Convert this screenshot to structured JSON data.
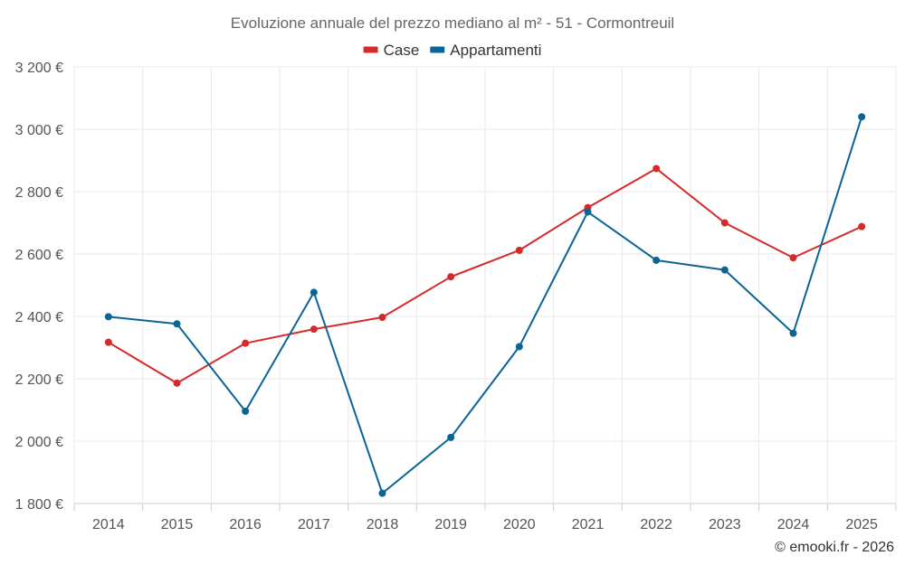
{
  "chart_data": {
    "type": "line",
    "title": "Evoluzione annuale del prezzo mediano al m² - 51 - Cormontreuil",
    "categories": [
      "2014",
      "2015",
      "2016",
      "2017",
      "2018",
      "2019",
      "2020",
      "2021",
      "2022",
      "2023",
      "2024",
      "2025"
    ],
    "series": [
      {
        "name": "Case",
        "color": "#d62a2a",
        "values": [
          2317,
          2186,
          2314,
          2359,
          2397,
          2527,
          2612,
          2749,
          2874,
          2700,
          2588,
          2688
        ]
      },
      {
        "name": "Appartamenti",
        "color": "#0a6495",
        "values": [
          2399,
          2376,
          2096,
          2477,
          1833,
          2012,
          2303,
          2735,
          2580,
          2549,
          2346,
          3040
        ]
      }
    ],
    "ylim": [
      1800,
      3200
    ],
    "yticks": [
      1800,
      2000,
      2200,
      2400,
      2600,
      2800,
      3000,
      3200
    ],
    "ytick_labels": [
      "1 800 €",
      "2 000 €",
      "2 200 €",
      "2 400 €",
      "2 600 €",
      "2 800 €",
      "3 000 €",
      "3 200 €"
    ],
    "xlabel": "",
    "ylabel": "",
    "grid": true,
    "legend_position": "top-center"
  },
  "credit": "© emooki.fr - 2026"
}
